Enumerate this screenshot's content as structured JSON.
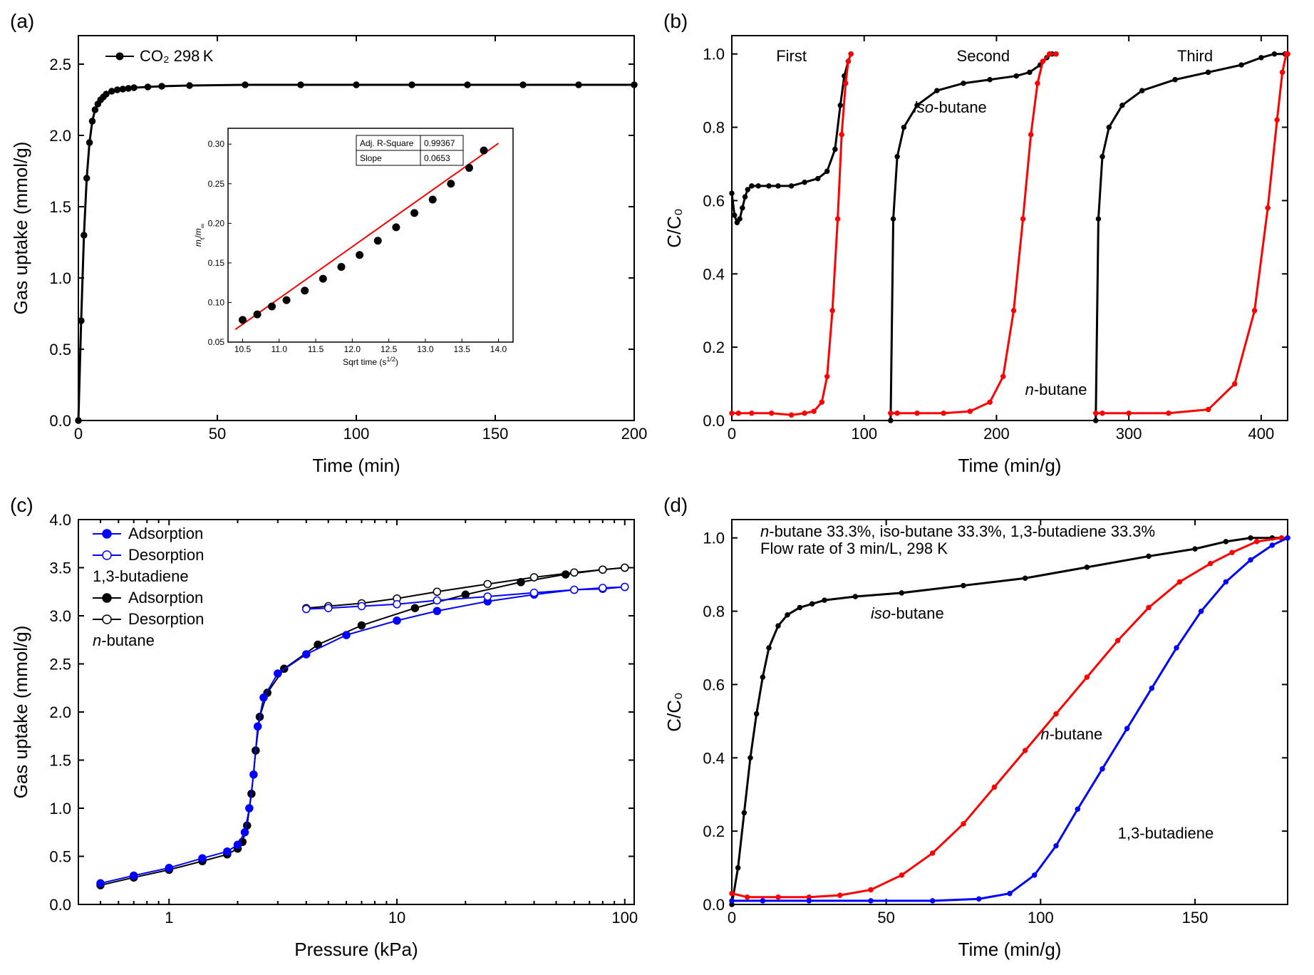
{
  "labels": {
    "a": "(a)",
    "b": "(b)",
    "c": "(c)",
    "d": "(d)"
  },
  "colors": {
    "black": "#000000",
    "red": "#ff0000",
    "blue": "#0000ff",
    "white": "#ffffff",
    "fit_red": "#ff0000"
  },
  "a": {
    "xlabel": "Time (min)",
    "ylabel": "Gas uptake (mmol/g)",
    "xlim": [
      0,
      200
    ],
    "ylim": [
      0,
      2.7
    ],
    "xticks": [
      0,
      50,
      100,
      150,
      200
    ],
    "yticks": [
      0.0,
      0.5,
      1.0,
      1.5,
      2.0,
      2.5
    ],
    "legend": "CO₂ 298 K",
    "series_x": [
      0,
      1,
      2,
      3,
      4,
      5,
      6,
      7,
      8,
      9,
      10,
      12,
      14,
      16,
      18,
      20,
      25,
      30,
      40,
      60,
      80,
      100,
      120,
      140,
      160,
      180,
      200
    ],
    "series_y": [
      0.0,
      0.7,
      1.3,
      1.7,
      1.95,
      2.1,
      2.18,
      2.22,
      2.25,
      2.27,
      2.29,
      2.31,
      2.32,
      2.325,
      2.33,
      2.335,
      2.34,
      2.345,
      2.35,
      2.355,
      2.355,
      2.355,
      2.355,
      2.355,
      2.355,
      2.355,
      2.355
    ],
    "marker_size": 4,
    "line_width": 3,
    "inset": {
      "xlabel": "Sqrt time (s^{1/2})",
      "ylabel": "m_t/m_∞",
      "xlim": [
        10.3,
        14.2
      ],
      "ylim": [
        0.05,
        0.32
      ],
      "xticks": [
        10.5,
        11.0,
        11.5,
        12.0,
        12.5,
        13.0,
        13.5,
        14.0
      ],
      "yticks": [
        0.05,
        0.1,
        0.15,
        0.2,
        0.25,
        0.3
      ],
      "stats": {
        "r2_label": "Adj. R-Square",
        "r2": "0.99367",
        "slope_label": "Slope",
        "slope": "0.0653"
      },
      "points_x": [
        10.5,
        10.7,
        10.9,
        11.1,
        11.35,
        11.6,
        11.85,
        12.1,
        12.35,
        12.6,
        12.85,
        13.1,
        13.35,
        13.6,
        13.8
      ],
      "points_y": [
        0.078,
        0.085,
        0.095,
        0.103,
        0.115,
        0.13,
        0.145,
        0.16,
        0.178,
        0.195,
        0.213,
        0.23,
        0.25,
        0.27,
        0.292
      ],
      "fit_x": [
        10.4,
        14.0
      ],
      "fit_y": [
        0.066,
        0.301
      ]
    }
  },
  "b": {
    "xlabel": "Time (min/g)",
    "ylabel": "C/C₀",
    "xlim": [
      0,
      420
    ],
    "ylim": [
      0,
      1.05
    ],
    "xticks": [
      0,
      100,
      200,
      300,
      400
    ],
    "yticks": [
      0.0,
      0.2,
      0.4,
      0.6,
      0.8,
      1.0
    ],
    "annotations": {
      "first": "First",
      "second": "Second",
      "third": "Third",
      "iso": "iso-butane",
      "n": "n-butane"
    },
    "iso_x": [
      0,
      2,
      4,
      6,
      8,
      10,
      12,
      15,
      20,
      28,
      35,
      45,
      55,
      65,
      72,
      78,
      82,
      85,
      88,
      90,
      120,
      122,
      125,
      130,
      140,
      155,
      175,
      195,
      215,
      225,
      233,
      238,
      242,
      245,
      275,
      277,
      280,
      285,
      295,
      310,
      335,
      360,
      385,
      400,
      410,
      418,
      420
    ],
    "iso_y": [
      0.62,
      0.56,
      0.54,
      0.55,
      0.58,
      0.61,
      0.63,
      0.64,
      0.64,
      0.64,
      0.64,
      0.64,
      0.65,
      0.66,
      0.68,
      0.74,
      0.86,
      0.94,
      0.98,
      1.0,
      0.0,
      0.55,
      0.72,
      0.8,
      0.86,
      0.9,
      0.92,
      0.93,
      0.94,
      0.95,
      0.97,
      0.99,
      1.0,
      1.0,
      0.0,
      0.55,
      0.72,
      0.8,
      0.86,
      0.9,
      0.93,
      0.95,
      0.97,
      0.99,
      1.0,
      1.0,
      1.0
    ],
    "n_x": [
      0,
      5,
      15,
      30,
      45,
      55,
      62,
      68,
      72,
      76,
      80,
      83,
      86,
      88,
      90,
      120,
      125,
      140,
      160,
      180,
      195,
      205,
      213,
      220,
      226,
      231,
      235,
      240,
      245,
      275,
      280,
      300,
      330,
      360,
      380,
      395,
      405,
      412,
      416,
      419,
      420
    ],
    "n_y": [
      0.02,
      0.02,
      0.02,
      0.02,
      0.015,
      0.02,
      0.025,
      0.05,
      0.12,
      0.3,
      0.55,
      0.78,
      0.92,
      0.98,
      1.0,
      0.02,
      0.02,
      0.02,
      0.02,
      0.025,
      0.05,
      0.12,
      0.3,
      0.55,
      0.78,
      0.92,
      0.98,
      1.0,
      1.0,
      0.02,
      0.02,
      0.02,
      0.02,
      0.03,
      0.1,
      0.3,
      0.58,
      0.82,
      0.95,
      1.0,
      1.0
    ],
    "line_width": 3
  },
  "c": {
    "xlabel": "Pressure (kPa)",
    "ylabel": "Gas uptake (mmol/g)",
    "xlim_log": [
      0.4,
      110
    ],
    "ylim": [
      0,
      4.0
    ],
    "xticks": [
      1,
      10,
      100
    ],
    "yticks": [
      0.0,
      0.5,
      1.0,
      1.5,
      2.0,
      2.5,
      3.0,
      3.5,
      4.0
    ],
    "legend": {
      "ads_bd": "Adsorption",
      "des_bd": "Desorption",
      "bd": "1,3-butadiene",
      "ads_nb": "Adsorption",
      "des_nb": "Desorption",
      "nb": "n-butane"
    },
    "bd_ads_x": [
      0.5,
      0.7,
      1.0,
      1.4,
      1.8,
      2.0,
      2.15,
      2.25,
      2.35,
      2.45,
      2.6,
      3.0,
      4.0,
      6.0,
      10,
      15,
      25,
      40,
      60,
      80,
      100
    ],
    "bd_ads_y": [
      0.22,
      0.3,
      0.38,
      0.48,
      0.55,
      0.62,
      0.75,
      1.0,
      1.35,
      1.85,
      2.15,
      2.4,
      2.6,
      2.8,
      2.95,
      3.05,
      3.15,
      3.22,
      3.27,
      3.28,
      3.3
    ],
    "bd_des_x": [
      100,
      80,
      60,
      40,
      25,
      15,
      10,
      7,
      5,
      4
    ],
    "bd_des_y": [
      3.3,
      3.29,
      3.27,
      3.24,
      3.2,
      3.16,
      3.12,
      3.1,
      3.08,
      3.07
    ],
    "nb_ads_x": [
      0.5,
      0.7,
      1.0,
      1.4,
      1.8,
      2.0,
      2.1,
      2.2,
      2.3,
      2.4,
      2.5,
      2.7,
      3.2,
      4.5,
      7,
      12,
      20,
      35,
      55,
      80,
      100
    ],
    "nb_ads_y": [
      0.2,
      0.28,
      0.36,
      0.45,
      0.52,
      0.58,
      0.65,
      0.82,
      1.15,
      1.6,
      1.95,
      2.2,
      2.45,
      2.7,
      2.9,
      3.08,
      3.22,
      3.35,
      3.43,
      3.48,
      3.5
    ],
    "nb_des_x": [
      100,
      80,
      60,
      40,
      25,
      15,
      10,
      7,
      5,
      4
    ],
    "nb_des_y": [
      3.5,
      3.48,
      3.45,
      3.4,
      3.33,
      3.25,
      3.18,
      3.13,
      3.1,
      3.08
    ],
    "marker_size": 5
  },
  "d": {
    "xlabel": "Time (min/g)",
    "ylabel": "C/C₀",
    "xlim": [
      0,
      180
    ],
    "ylim": [
      0,
      1.05
    ],
    "xticks": [
      0,
      50,
      100,
      150
    ],
    "yticks": [
      0.0,
      0.2,
      0.4,
      0.6,
      0.8,
      1.0
    ],
    "title_lines": [
      "n-butane 33.3%, iso-butane 33.3%, 1,3-butadiene 33.3%",
      "Flow rate of 3 min/L, 298 K"
    ],
    "annotations": {
      "iso": "iso-butane",
      "n": "n-butane",
      "bd": "1,3-butadiene"
    },
    "iso_x": [
      0,
      2,
      4,
      6,
      8,
      10,
      12,
      15,
      18,
      22,
      26,
      30,
      40,
      55,
      75,
      95,
      115,
      135,
      150,
      160,
      168,
      175,
      180
    ],
    "iso_y": [
      0.0,
      0.1,
      0.25,
      0.4,
      0.52,
      0.62,
      0.7,
      0.76,
      0.79,
      0.81,
      0.82,
      0.83,
      0.84,
      0.85,
      0.87,
      0.89,
      0.92,
      0.95,
      0.97,
      0.99,
      1.0,
      1.0,
      1.0
    ],
    "n_x": [
      0,
      5,
      15,
      25,
      35,
      45,
      55,
      65,
      75,
      85,
      95,
      105,
      115,
      125,
      135,
      145,
      155,
      162,
      170,
      178,
      180
    ],
    "n_y": [
      0.03,
      0.02,
      0.02,
      0.02,
      0.025,
      0.04,
      0.08,
      0.14,
      0.22,
      0.32,
      0.42,
      0.52,
      0.62,
      0.72,
      0.81,
      0.88,
      0.93,
      0.96,
      0.99,
      1.0,
      1.0
    ],
    "bd_x": [
      0,
      10,
      25,
      45,
      65,
      80,
      90,
      98,
      105,
      112,
      120,
      128,
      136,
      144,
      152,
      160,
      168,
      175,
      180
    ],
    "bd_y": [
      0.01,
      0.01,
      0.01,
      0.01,
      0.01,
      0.015,
      0.03,
      0.08,
      0.16,
      0.26,
      0.37,
      0.48,
      0.59,
      0.7,
      0.8,
      0.88,
      0.94,
      0.98,
      1.0
    ],
    "line_width": 3
  }
}
